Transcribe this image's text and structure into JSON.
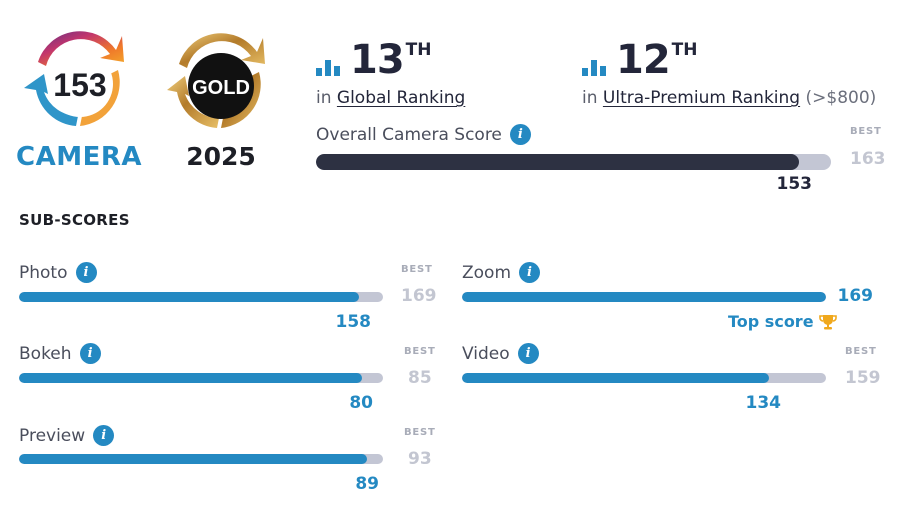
{
  "badges": {
    "camera_score": "153",
    "camera_label": "CAMERA",
    "gold_label": "GOLD",
    "gold_year": "2025"
  },
  "rankings": {
    "global": {
      "rank": "13",
      "suffix": "TH",
      "prefix": "in",
      "label": "Global Ranking"
    },
    "segment": {
      "rank": "12",
      "suffix": "TH",
      "prefix": "in",
      "label": "Ultra-Premium Ranking",
      "extra": "(>$800)"
    }
  },
  "overall": {
    "label": "Overall Camera Score",
    "best_tag": "BEST",
    "best": "163",
    "score": "153",
    "fraction": 0.9387
  },
  "sub_scores": {
    "title": "SUB-SCORES",
    "best_tag": "BEST",
    "top_score_label": "Top score",
    "photo": {
      "label": "Photo",
      "best": "169",
      "score": "158",
      "fraction": 0.935
    },
    "bokeh": {
      "label": "Bokeh",
      "best": "85",
      "score": "80",
      "fraction": 0.941
    },
    "preview": {
      "label": "Preview",
      "best": "93",
      "score": "89",
      "fraction": 0.957
    },
    "zoom": {
      "label": "Zoom",
      "best": "169",
      "score": "169",
      "fraction": 1.0
    },
    "video": {
      "label": "Video",
      "best": "159",
      "score": "134",
      "fraction": 0.843
    }
  },
  "colors": {
    "accent": "#2489c2",
    "dark": "#2d3142",
    "track": "#c3c6d4",
    "gold": "#c9963a",
    "trophy": "#f0a81c"
  },
  "icons": {
    "rank": "bar-chart-icon",
    "info": "info-icon",
    "trophy": "trophy-icon"
  }
}
